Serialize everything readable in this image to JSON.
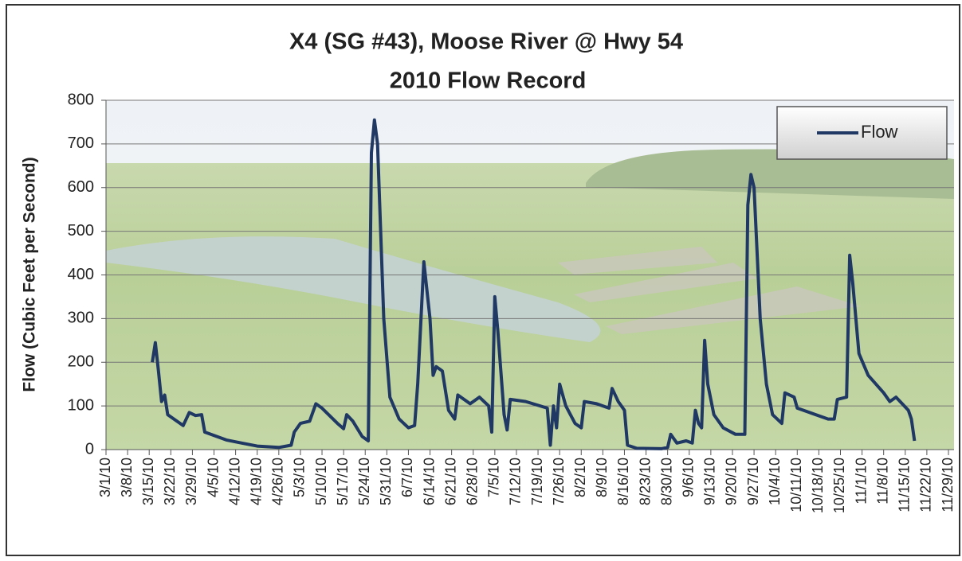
{
  "chart_data": {
    "type": "line",
    "title": "X4 (SG #43), Moose River @ Hwy 54",
    "subtitle": "2010 Flow Record",
    "y_label": "Flow (Cubic Feet per Second)",
    "ylim": [
      0,
      800
    ],
    "yticks": [
      0,
      100,
      200,
      300,
      400,
      500,
      600,
      700,
      800
    ],
    "grid": true,
    "xlim": [
      "3/1/10",
      "11/29/10"
    ],
    "xticks": [
      "3/1/10",
      "3/8/10",
      "3/15/10",
      "3/22/10",
      "3/29/10",
      "4/5/10",
      "4/12/10",
      "4/19/10",
      "4/26/10",
      "5/3/10",
      "5/10/10",
      "5/17/10",
      "5/24/10",
      "5/31/10",
      "6/7/10",
      "6/14/10",
      "6/21/10",
      "6/28/10",
      "7/5/10",
      "7/12/10",
      "7/19/10",
      "7/26/10",
      "8/2/10",
      "8/9/10",
      "8/16/10",
      "8/23/10",
      "8/30/10",
      "9/6/10",
      "9/13/10",
      "9/20/10",
      "9/27/10",
      "10/4/10",
      "10/11/10",
      "10/18/10",
      "10/25/10",
      "11/1/10",
      "11/8/10",
      "11/15/10",
      "11/22/10",
      "11/29/10"
    ],
    "legend": "upper right",
    "x": [
      "3/16/10",
      "3/17/10",
      "3/18/10",
      "3/19/10",
      "3/20/10",
      "3/21/10",
      "3/23/10",
      "3/26/10",
      "3/28/10",
      "3/30/10",
      "4/1/10",
      "4/2/10",
      "4/9/10",
      "4/14/10",
      "4/19/10",
      "4/26/10",
      "4/30/10",
      "5/1/10",
      "5/3/10",
      "5/6/10",
      "5/8/10",
      "5/10/10",
      "5/15/10",
      "5/17/10",
      "5/18/10",
      "5/20/10",
      "5/23/10",
      "5/25/10",
      "5/26/10",
      "5/27/10",
      "5/28/10",
      "5/30/10",
      "6/1/10",
      "6/4/10",
      "6/7/10",
      "6/9/10",
      "6/10/10",
      "6/12/10",
      "6/14/10",
      "6/15/10",
      "6/16/10",
      "6/18/10",
      "6/20/10",
      "6/22/10",
      "6/23/10",
      "6/27/10",
      "6/30/10",
      "7/3/10",
      "7/4/10",
      "7/5/10",
      "7/6/10",
      "7/8/10",
      "7/9/10",
      "7/10/10",
      "7/15/10",
      "7/22/10",
      "7/23/10",
      "7/24/10",
      "7/25/10",
      "7/26/10",
      "7/28/10",
      "7/31/10",
      "8/2/10",
      "8/3/10",
      "8/7/10",
      "8/11/10",
      "8/12/10",
      "8/14/10",
      "8/16/10",
      "8/17/10",
      "8/20/10",
      "8/28/10",
      "8/30/10",
      "8/31/10",
      "9/2/10",
      "9/5/10",
      "9/7/10",
      "9/8/10",
      "9/9/10",
      "9/10/10",
      "9/11/10",
      "9/12/10",
      "9/14/10",
      "9/17/10",
      "9/21/10",
      "9/24/10",
      "9/25/10",
      "9/26/10",
      "9/27/10",
      "9/29/10",
      "10/1/10",
      "10/3/10",
      "10/6/10",
      "10/7/10",
      "10/10/10",
      "10/11/10",
      "10/15/10",
      "10/21/10",
      "10/23/10",
      "10/24/10",
      "10/27/10",
      "10/28/10",
      "10/29/10",
      "10/31/10",
      "11/3/10",
      "11/8/10",
      "11/10/10",
      "11/12/10",
      "11/16/10",
      "11/17/10",
      "11/18/10"
    ],
    "series": [
      {
        "name": "Flow",
        "color": "#1f3864",
        "values": [
          200,
          245,
          180,
          110,
          125,
          80,
          70,
          55,
          85,
          78,
          80,
          40,
          22,
          15,
          8,
          5,
          10,
          40,
          60,
          65,
          105,
          95,
          60,
          48,
          80,
          65,
          30,
          20,
          680,
          755,
          700,
          300,
          120,
          70,
          50,
          55,
          150,
          430,
          300,
          170,
          190,
          180,
          90,
          70,
          125,
          105,
          120,
          100,
          40,
          350,
          270,
          80,
          45,
          115,
          110,
          95,
          10,
          100,
          50,
          150,
          100,
          60,
          50,
          110,
          105,
          95,
          140,
          110,
          90,
          10,
          3,
          2,
          5,
          35,
          15,
          20,
          15,
          90,
          60,
          50,
          250,
          150,
          80,
          50,
          35,
          35,
          560,
          630,
          600,
          300,
          150,
          80,
          60,
          130,
          120,
          95,
          85,
          70,
          70,
          115,
          120,
          445,
          380,
          220,
          170,
          130,
          110,
          120,
          90,
          70,
          20
        ]
      }
    ]
  }
}
